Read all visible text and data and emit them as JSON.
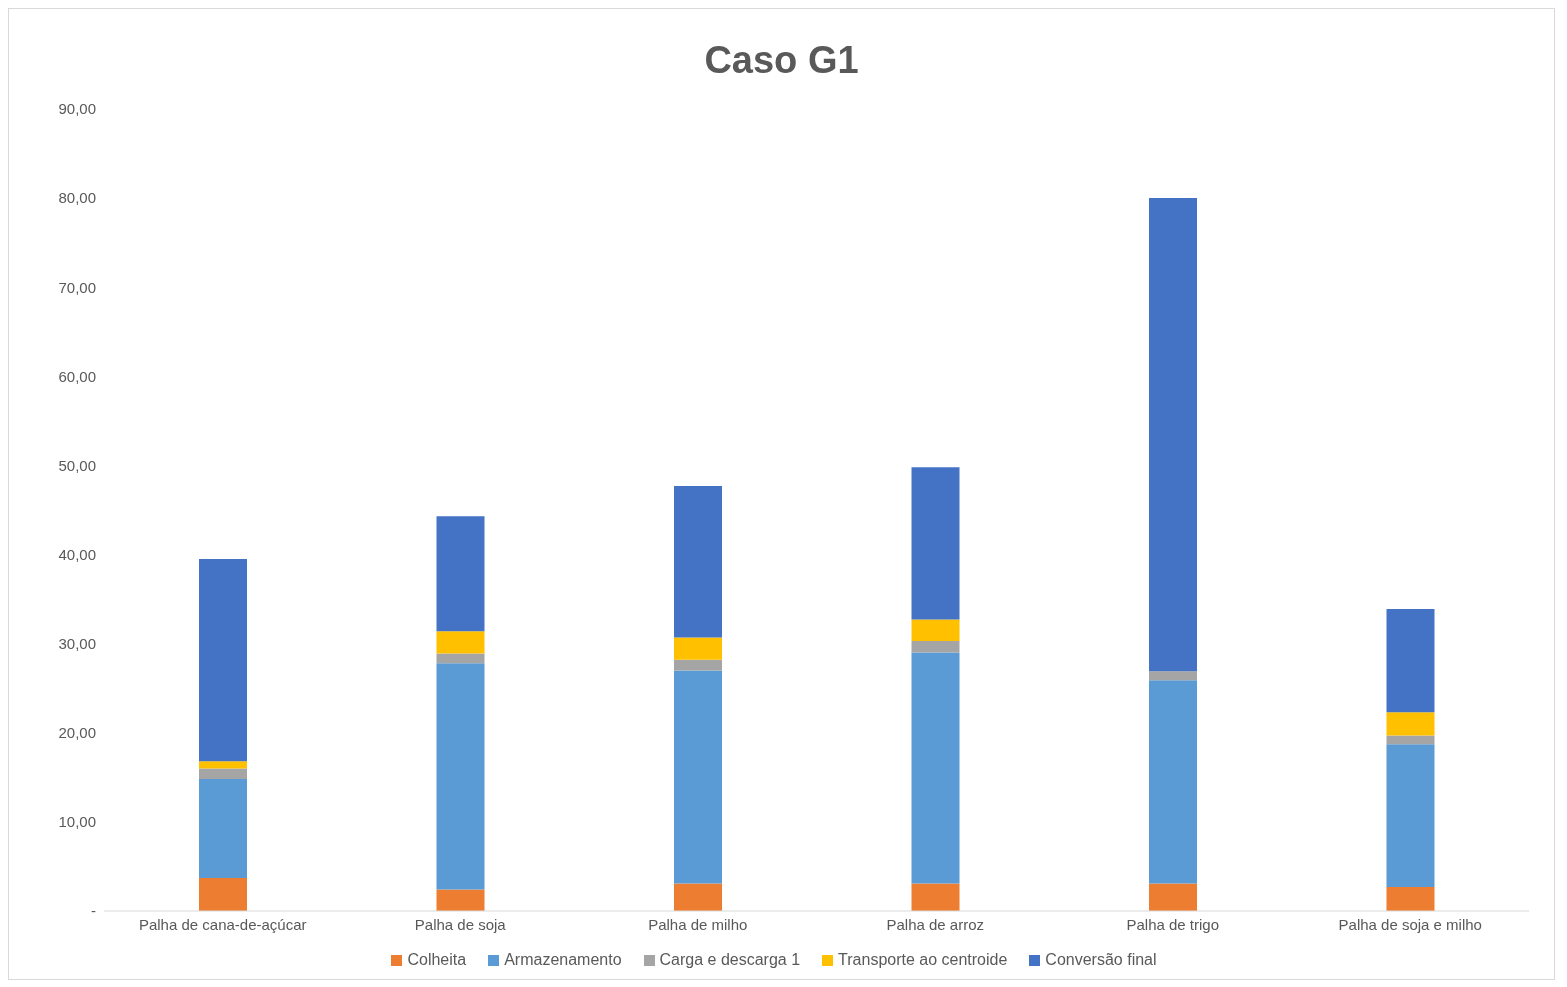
{
  "chart_data": {
    "type": "bar",
    "title": "Caso G1",
    "stacked": true,
    "legend": "bottom",
    "grid": false,
    "categories": [
      "Palha de cana-de-açúcar",
      "Palha de soja",
      "Palha de milho",
      "Palha de arroz",
      "Palha de trigo",
      "Palha de soja e milho"
    ],
    "series": [
      {
        "name": "Colheita",
        "color": "#ed7d31",
        "values": [
          3.7,
          2.4,
          3.1,
          3.1,
          3.1,
          2.7
        ]
      },
      {
        "name": "Armazenamento",
        "color": "#5b9bd5",
        "values": [
          11.1,
          25.4,
          23.9,
          25.9,
          22.8,
          16.0
        ]
      },
      {
        "name": "Carga e descarga 1",
        "color": "#a5a5a5",
        "values": [
          1.2,
          1.1,
          1.2,
          1.3,
          1.0,
          1.0
        ]
      },
      {
        "name": "Transporte ao centroide",
        "color": "#ffc000",
        "values": [
          0.8,
          2.5,
          2.5,
          2.4,
          0,
          2.6
        ]
      },
      {
        "name": "Conversão final",
        "color": "#4472c4",
        "values": [
          22.7,
          12.9,
          17.0,
          17.1,
          53.1,
          11.6
        ]
      }
    ],
    "ylim": [
      0,
      90
    ],
    "yticks": [
      {
        "value": 0,
        "label": "-"
      },
      {
        "value": 10,
        "label": "10,00"
      },
      {
        "value": 20,
        "label": "20,00"
      },
      {
        "value": 30,
        "label": "30,00"
      },
      {
        "value": 40,
        "label": "40,00"
      },
      {
        "value": 50,
        "label": "50,00"
      },
      {
        "value": 60,
        "label": "60,00"
      },
      {
        "value": 70,
        "label": "70,00"
      },
      {
        "value": 80,
        "label": "80,00"
      },
      {
        "value": 90,
        "label": "90,00"
      }
    ]
  }
}
